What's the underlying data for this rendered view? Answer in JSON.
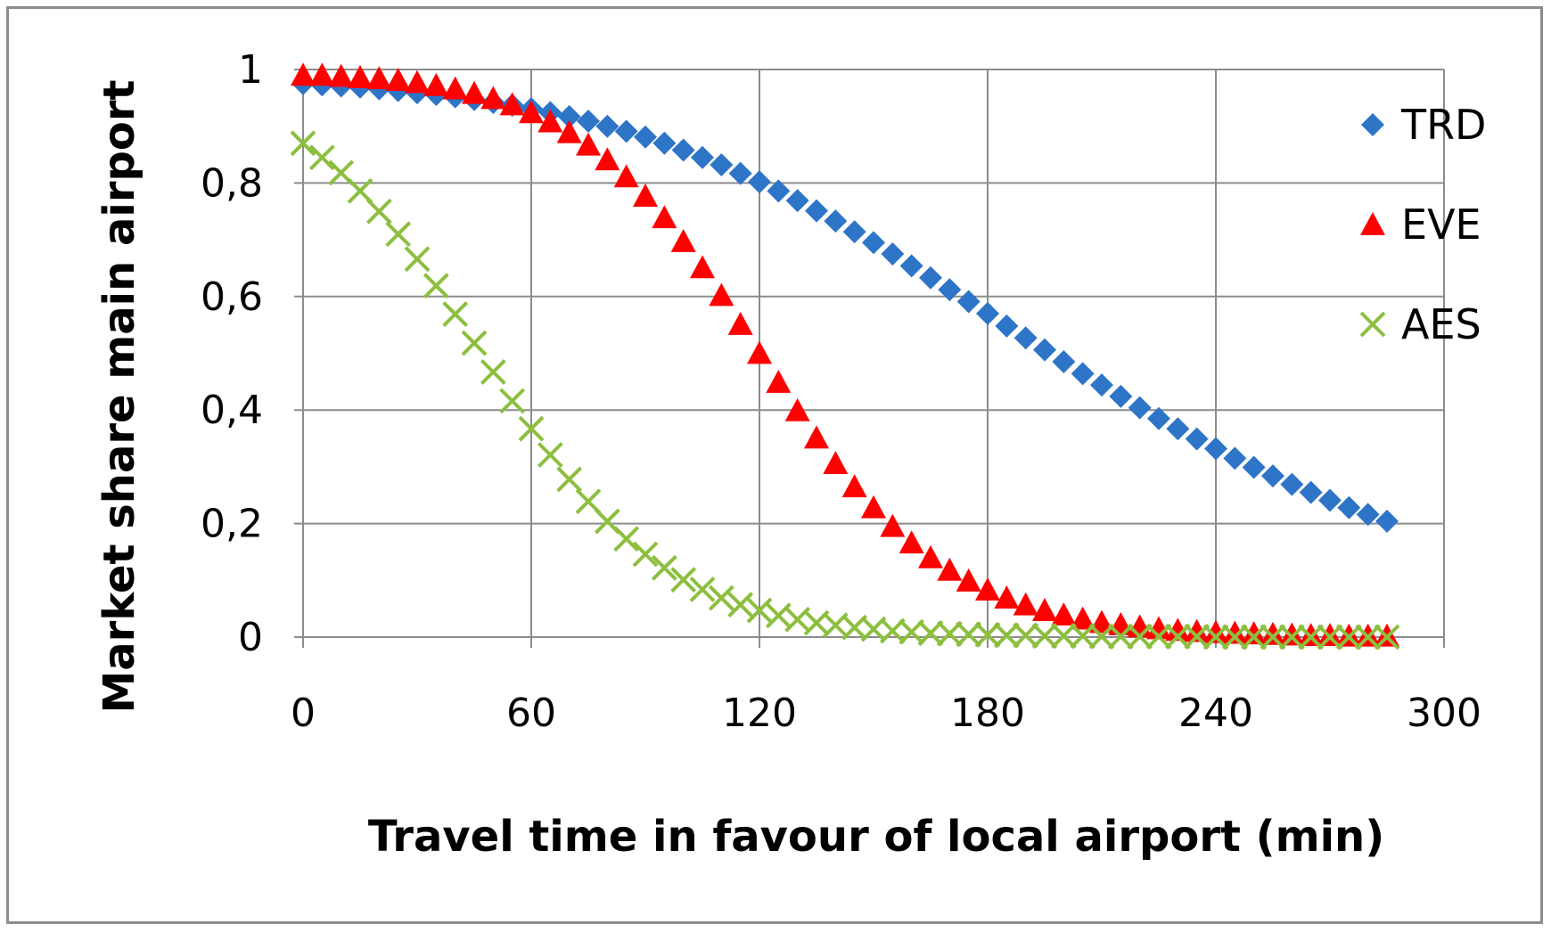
{
  "chart_data": {
    "type": "scatter",
    "xlabel": "Travel time in favour of local airport (min)",
    "ylabel": "Market share main airport",
    "xlim": [
      0,
      300
    ],
    "ylim": [
      0,
      1
    ],
    "x_ticks": [
      "0",
      "60",
      "120",
      "180",
      "240",
      "300"
    ],
    "y_ticks": [
      "0",
      "0,2",
      "0,4",
      "0,6",
      "0,8",
      "1"
    ],
    "grid": true,
    "legend_position": "right",
    "x": [
      0,
      5,
      10,
      15,
      20,
      25,
      30,
      35,
      40,
      45,
      50,
      55,
      60,
      65,
      70,
      75,
      80,
      85,
      90,
      95,
      100,
      105,
      110,
      115,
      120,
      125,
      130,
      135,
      140,
      145,
      150,
      155,
      160,
      165,
      170,
      175,
      180,
      185,
      190,
      195,
      200,
      205,
      210,
      215,
      220,
      225,
      230,
      235,
      240,
      245,
      250,
      255,
      260,
      265,
      270,
      275,
      280,
      285
    ],
    "series": [
      {
        "name": "TRD",
        "color": "#2e75c8",
        "marker": "diamond",
        "values": [
          0.975,
          0.973,
          0.971,
          0.969,
          0.966,
          0.963,
          0.959,
          0.956,
          0.952,
          0.947,
          0.942,
          0.937,
          0.931,
          0.924,
          0.917,
          0.909,
          0.9,
          0.891,
          0.881,
          0.87,
          0.858,
          0.845,
          0.832,
          0.817,
          0.802,
          0.786,
          0.769,
          0.751,
          0.733,
          0.714,
          0.695,
          0.675,
          0.654,
          0.633,
          0.612,
          0.591,
          0.57,
          0.548,
          0.527,
          0.506,
          0.485,
          0.464,
          0.444,
          0.424,
          0.404,
          0.385,
          0.367,
          0.349,
          0.332,
          0.315,
          0.299,
          0.284,
          0.269,
          0.255,
          0.241,
          0.228,
          0.216,
          0.204
        ]
      },
      {
        "name": "EVE",
        "color": "#ff0000",
        "marker": "triangle",
        "values": [
          0.99,
          0.99,
          0.988,
          0.986,
          0.984,
          0.981,
          0.977,
          0.972,
          0.966,
          0.958,
          0.949,
          0.938,
          0.924,
          0.908,
          0.889,
          0.867,
          0.841,
          0.811,
          0.777,
          0.739,
          0.697,
          0.651,
          0.602,
          0.551,
          0.5,
          0.449,
          0.399,
          0.351,
          0.306,
          0.265,
          0.228,
          0.195,
          0.166,
          0.14,
          0.118,
          0.099,
          0.083,
          0.069,
          0.057,
          0.047,
          0.039,
          0.032,
          0.026,
          0.022,
          0.018,
          0.015,
          0.012,
          0.01,
          0.008,
          0.007,
          0.006,
          0.005,
          0.004,
          0.003,
          0.003,
          0.002,
          0.002,
          0.002
        ]
      },
      {
        "name": "AES",
        "color": "#8cbf3f",
        "marker": "x",
        "values": [
          0.87,
          0.845,
          0.818,
          0.786,
          0.75,
          0.71,
          0.666,
          0.619,
          0.569,
          0.518,
          0.467,
          0.416,
          0.367,
          0.321,
          0.278,
          0.239,
          0.204,
          0.173,
          0.146,
          0.122,
          0.101,
          0.084,
          0.069,
          0.057,
          0.047,
          0.038,
          0.031,
          0.025,
          0.021,
          0.017,
          0.014,
          0.011,
          0.009,
          0.007,
          0.006,
          0.005,
          0.004,
          0.003,
          0.003,
          0.002,
          0.002,
          0.002,
          0.001,
          0.001,
          0.001,
          0.001,
          0.001,
          0.001,
          0.0,
          0.0,
          0.0,
          0.0,
          0.0,
          0.0,
          0.0,
          0.0,
          0.0,
          0.0
        ]
      }
    ]
  }
}
